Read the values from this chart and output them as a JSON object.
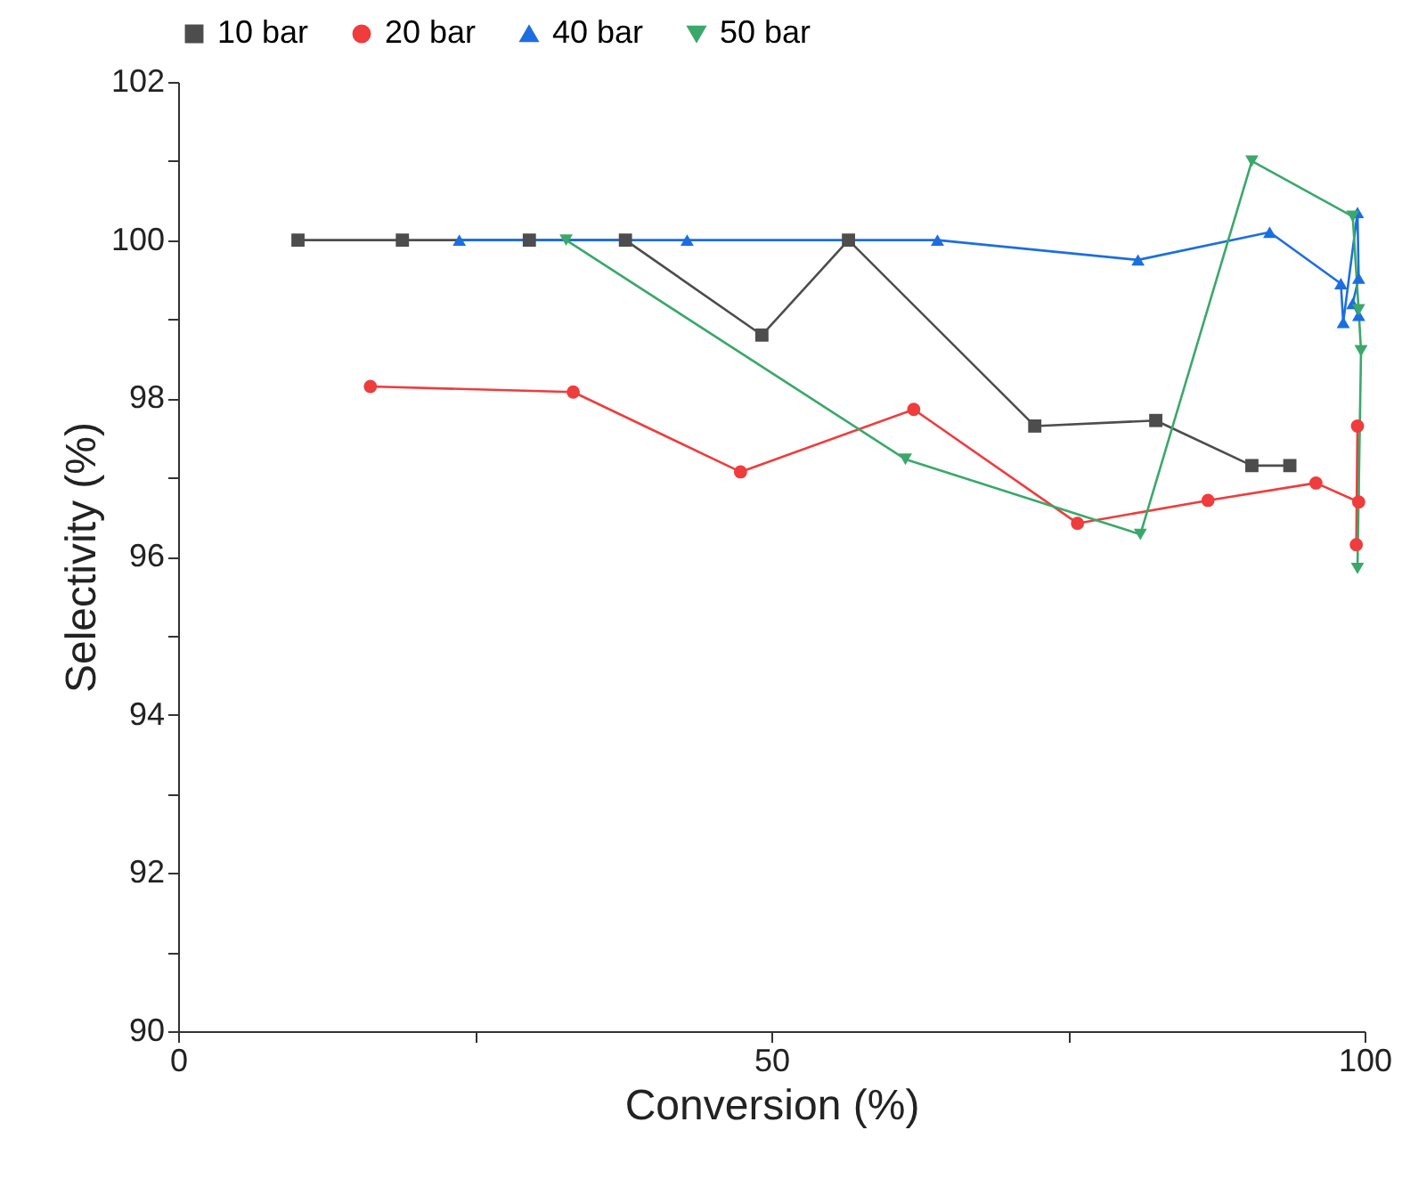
{
  "chart_data": {
    "type": "line",
    "xlabel": "Conversion (%)",
    "ylabel": "Selectivity (%)",
    "xlim": [
      0,
      100
    ],
    "xticks": [
      0,
      {
        "value": 25,
        "label": null
      },
      50,
      {
        "value": 75,
        "label": null
      },
      100
    ],
    "ylim": [
      90,
      102
    ],
    "yticks": [
      90,
      {
        "value": 91,
        "label": null
      },
      92,
      {
        "value": 93,
        "label": null
      },
      94,
      {
        "value": 95,
        "label": null
      },
      96,
      {
        "value": 97,
        "label": null
      },
      98,
      {
        "value": 99,
        "label": null
      },
      100,
      {
        "value": 101,
        "label": null
      },
      102
    ],
    "legend": "top",
    "grid": false,
    "series": [
      {
        "name": "10 bar",
        "color": "#4d4d4d",
        "marker": "square",
        "x": [
          10.1,
          18.9,
          29.6,
          37.7,
          49.2,
          56.5,
          72.2,
          82.4,
          90.5,
          93.7
        ],
        "values": [
          100,
          100,
          100,
          100,
          98.8,
          100,
          97.65,
          97.72,
          97.15,
          97.15
        ]
      },
      {
        "name": "20 bar",
        "color": "#ef3c3c",
        "marker": "circle",
        "x": [
          16.2,
          33.3,
          47.4,
          62.0,
          75.8,
          86.8,
          95.9,
          99.5,
          99.4,
          99.3
        ],
        "values": [
          98.15,
          98.08,
          97.07,
          97.86,
          96.42,
          96.71,
          96.93,
          96.69,
          97.65,
          96.15
        ]
      },
      {
        "name": "40 bar",
        "color": "#1c6ee0",
        "marker": "triangle",
        "x": [
          23.7,
          42.9,
          64.0,
          80.9,
          92.0,
          98.0,
          98.2,
          99.4,
          99.5,
          99.0,
          99.5
        ],
        "values": [
          100,
          100,
          100,
          99.75,
          100.1,
          99.45,
          98.96,
          100.35,
          99.52,
          99.2,
          99.05
        ]
      },
      {
        "name": "50 bar",
        "color": "#3aa86a",
        "marker": "triangle-down",
        "x": [
          32.7,
          61.3,
          81.1,
          90.5,
          99.0,
          99.5,
          99.7,
          99.4
        ],
        "values": [
          100,
          97.23,
          96.28,
          101,
          100.3,
          99.12,
          98.6,
          95.85
        ]
      }
    ]
  }
}
